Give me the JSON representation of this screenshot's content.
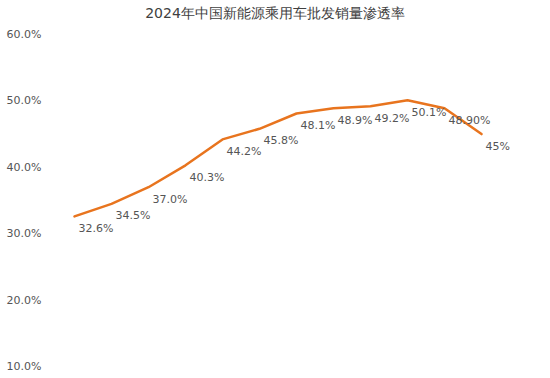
{
  "chart_data": {
    "type": "line",
    "title": "2024年中国新能源乘用车批发销量渗透率",
    "categories": [
      null,
      null,
      null,
      null,
      null,
      null,
      null,
      null,
      null,
      null,
      null,
      null
    ],
    "values": [
      32.6,
      34.5,
      37.0,
      40.3,
      44.2,
      45.8,
      48.1,
      48.9,
      49.2,
      50.1,
      48.9,
      45
    ],
    "value_labels": [
      "32.6%",
      "34.5%",
      "37.0%",
      "40.3%",
      "44.2%",
      "45.8%",
      "48.1%",
      "48.9%",
      "49.2%",
      "50.1%",
      "48.90%",
      "45%"
    ],
    "color": "#e8741e",
    "ylim": [
      10,
      60
    ],
    "yticks": [
      {
        "value": 10,
        "label": "10.0%"
      },
      {
        "value": 20,
        "label": "20.0%"
      },
      {
        "value": 30,
        "label": "30.0%"
      },
      {
        "value": 40,
        "label": "40.0%"
      },
      {
        "value": 50,
        "label": "50.0%"
      },
      {
        "value": 60,
        "label": "60.0%"
      }
    ],
    "grid": false,
    "data_labels": true,
    "tick_labels": "y"
  }
}
